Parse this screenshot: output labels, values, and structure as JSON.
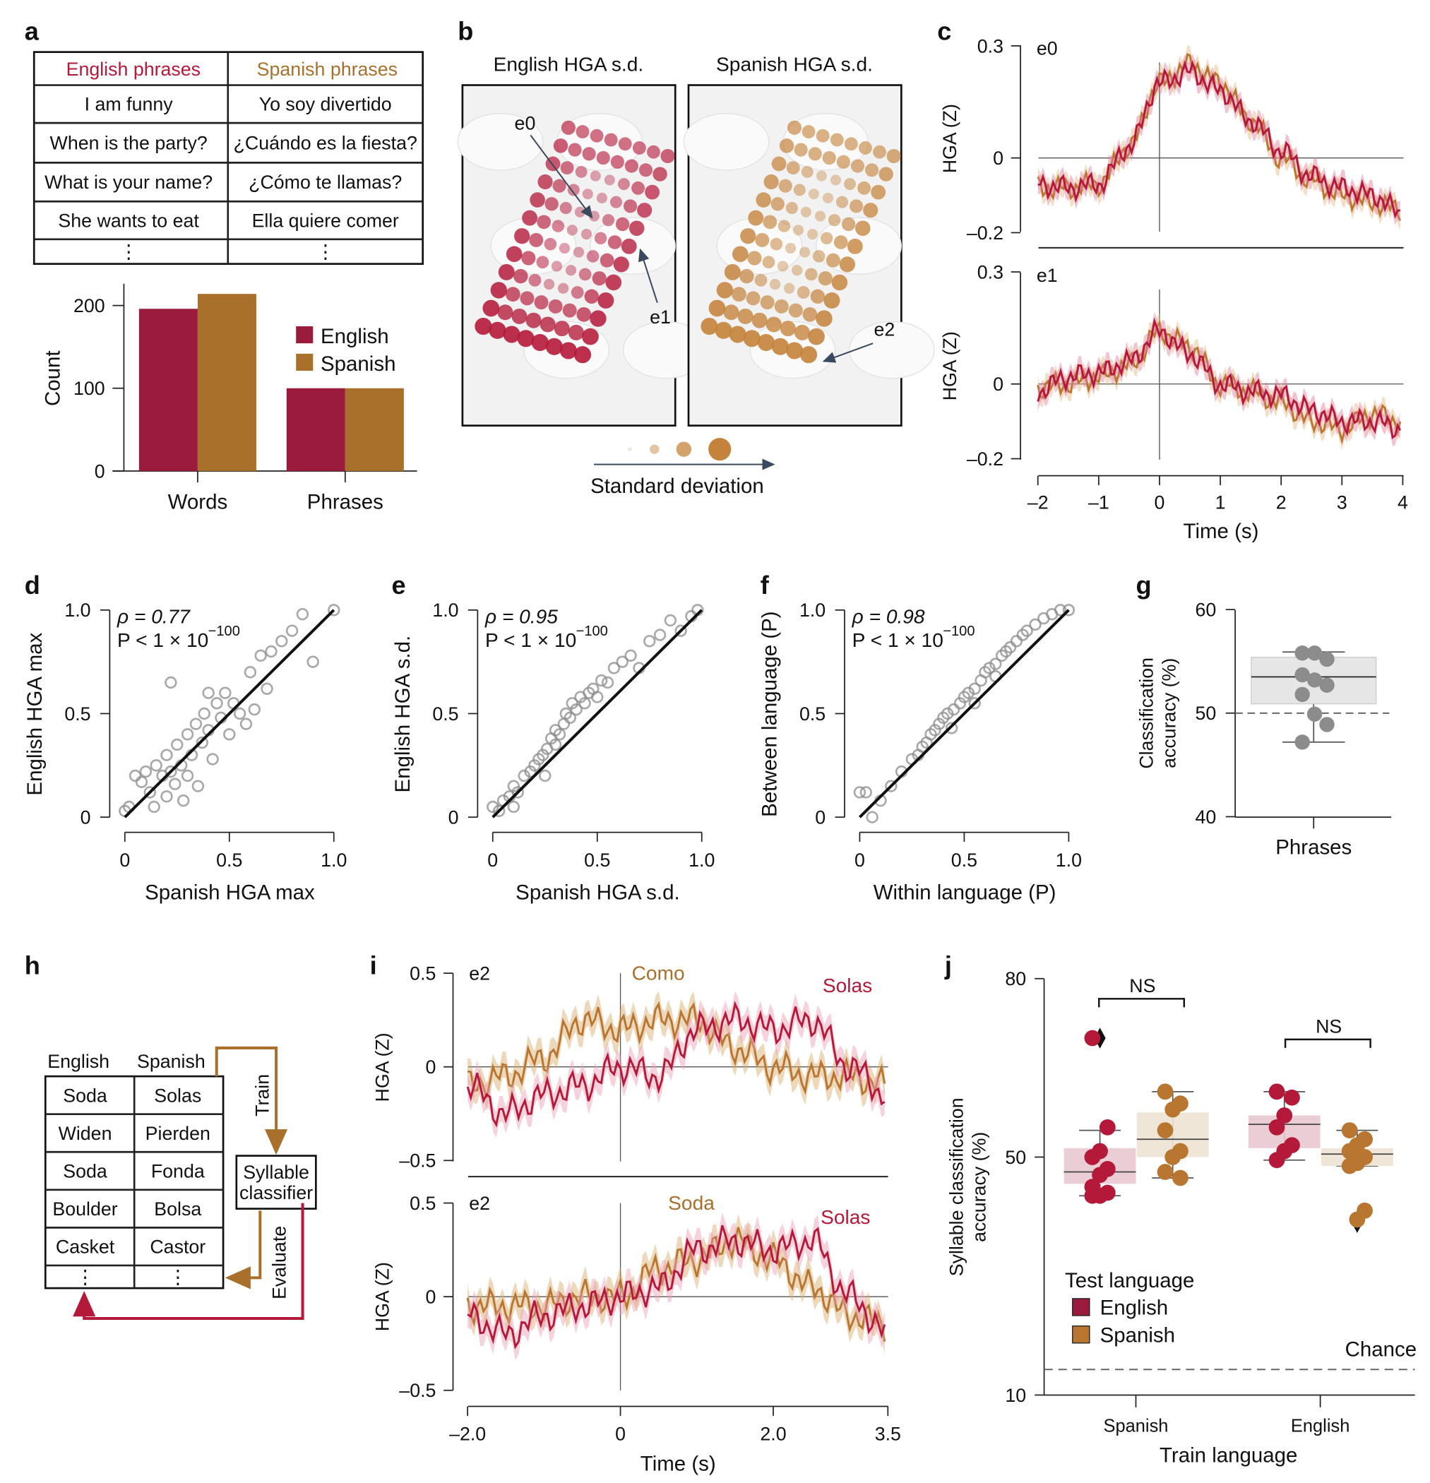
{
  "colors": {
    "english": "#9b1b3c",
    "english_line": "#b5193a",
    "spanish": "#a8702b",
    "spanish_line": "#b87630",
    "english_fill": "#e9c8d0",
    "spanish_fill": "#ede3d3",
    "points": "#8c8c8c",
    "arrow": "#3a4a5e"
  },
  "panel_labels": [
    "a",
    "b",
    "c",
    "d",
    "e",
    "f",
    "g",
    "h",
    "i",
    "j"
  ],
  "chart_data": [
    {
      "type": "table",
      "panel": "a",
      "headers": [
        "English phrases",
        "Spanish phrases"
      ],
      "rows": [
        [
          "I am funny",
          "Yo soy divertido"
        ],
        [
          "When is the party?",
          "¿Cuándo es la fiesta?"
        ],
        [
          "What is your name?",
          "¿Cómo te llamas?"
        ],
        [
          "She wants to eat",
          "Ella quiere comer"
        ],
        [
          "⋮",
          "⋮"
        ]
      ]
    },
    {
      "type": "bar",
      "panel": "a",
      "categories": [
        "Words",
        "Phrases"
      ],
      "ylabel": "Count",
      "ylim": [
        0,
        220
      ],
      "yticks": [
        0,
        100,
        200
      ],
      "series": [
        {
          "name": "English",
          "values": [
            196,
            100
          ]
        },
        {
          "name": "Spanish",
          "values": [
            214,
            100
          ]
        }
      ],
      "legend": "right"
    },
    {
      "type": "scatter",
      "panel": "b",
      "titles": [
        "English HGA s.d.",
        "Spanish HGA s.d."
      ],
      "electrode_labels": [
        "e0",
        "e1",
        "e2"
      ],
      "size_legend_label": "Standard deviation"
    },
    {
      "type": "line",
      "panel": "c",
      "xlabel": "Time (s)",
      "ylabel": "HGA (Z)",
      "xlim": [
        -2,
        4
      ],
      "ylim": [
        -0.2,
        0.3
      ],
      "xticks": [
        -2,
        -1,
        0,
        1,
        2,
        3,
        4
      ],
      "xtick_labels": [
        "–2",
        "–1",
        "0",
        "1",
        "2",
        "3",
        "4"
      ],
      "yticks": [
        -0.2,
        0,
        0.3
      ],
      "ytick_labels": [
        "–0.2",
        "0",
        "0.3"
      ],
      "x": [
        -2,
        -1.5,
        -1,
        -0.5,
        0,
        0.5,
        1,
        1.5,
        2,
        2.5,
        3,
        3.5,
        4
      ],
      "subplots": [
        {
          "label": "e0",
          "series": [
            {
              "name": "English",
              "values": [
                -0.07,
                -0.08,
                -0.07,
                0.03,
                0.2,
                0.23,
                0.18,
                0.1,
                0.02,
                -0.05,
                -0.08,
                -0.1,
                -0.15
              ]
            },
            {
              "name": "Spanish",
              "values": [
                -0.08,
                -0.08,
                -0.07,
                0.03,
                0.2,
                0.25,
                0.2,
                0.1,
                0.0,
                -0.06,
                -0.1,
                -0.12,
                -0.14
              ]
            }
          ]
        },
        {
          "label": "e1",
          "series": [
            {
              "name": "English",
              "values": [
                -0.02,
                0.02,
                0.03,
                0.06,
                0.14,
                0.08,
                0.0,
                -0.02,
                -0.03,
                -0.07,
                -0.1,
                -0.1,
                -0.12
              ]
            },
            {
              "name": "Spanish",
              "values": [
                -0.01,
                0.0,
                0.02,
                0.05,
                0.14,
                0.1,
                0.0,
                -0.02,
                -0.05,
                -0.1,
                -0.12,
                -0.08,
                -0.1
              ]
            }
          ]
        }
      ]
    },
    {
      "type": "scatter",
      "panel": "d",
      "xlabel": "Spanish HGA max",
      "ylabel": "English HGA max",
      "stat_rho": "ρ = 0.77",
      "stat_p": "P < 1 × 10",
      "stat_exp": "−100",
      "xlim": [
        0,
        1
      ],
      "ylim": [
        0,
        1
      ],
      "ticks": [
        "0",
        "0.5",
        "1.0"
      ],
      "fit": [
        [
          0,
          0
        ],
        [
          1,
          1
        ]
      ],
      "points": [
        [
          0,
          0.03
        ],
        [
          0.02,
          0.05
        ],
        [
          0.05,
          0.2
        ],
        [
          0.08,
          0.17
        ],
        [
          0.1,
          0.22
        ],
        [
          0.12,
          0.12
        ],
        [
          0.14,
          0.05
        ],
        [
          0.15,
          0.25
        ],
        [
          0.18,
          0.2
        ],
        [
          0.2,
          0.1
        ],
        [
          0.2,
          0.3
        ],
        [
          0.22,
          0.22
        ],
        [
          0.24,
          0.16
        ],
        [
          0.25,
          0.35
        ],
        [
          0.27,
          0.25
        ],
        [
          0.28,
          0.08
        ],
        [
          0.3,
          0.4
        ],
        [
          0.3,
          0.2
        ],
        [
          0.32,
          0.3
        ],
        [
          0.34,
          0.45
        ],
        [
          0.35,
          0.15
        ],
        [
          0.37,
          0.36
        ],
        [
          0.38,
          0.5
        ],
        [
          0.4,
          0.42
        ],
        [
          0.42,
          0.28
        ],
        [
          0.44,
          0.55
        ],
        [
          0.46,
          0.48
        ],
        [
          0.48,
          0.6
        ],
        [
          0.5,
          0.4
        ],
        [
          0.52,
          0.55
        ],
        [
          0.55,
          0.5
        ],
        [
          0.58,
          0.45
        ],
        [
          0.6,
          0.7
        ],
        [
          0.62,
          0.52
        ],
        [
          0.65,
          0.78
        ],
        [
          0.68,
          0.62
        ],
        [
          0.7,
          0.8
        ],
        [
          0.75,
          0.85
        ],
        [
          0.8,
          0.9
        ],
        [
          0.85,
          0.98
        ],
        [
          0.9,
          0.75
        ],
        [
          0.22,
          0.65
        ],
        [
          0.4,
          0.6
        ],
        [
          1.0,
          1.0
        ]
      ]
    },
    {
      "type": "scatter",
      "panel": "e",
      "xlabel": "Spanish HGA s.d.",
      "ylabel": "English HGA s.d.",
      "stat_rho": "ρ = 0.95",
      "stat_p": "P < 1 × 10",
      "stat_exp": "−100",
      "xlim": [
        0,
        1
      ],
      "ylim": [
        0,
        1
      ],
      "ticks": [
        "0",
        "0.5",
        "1.0"
      ],
      "fit": [
        [
          0,
          0
        ],
        [
          1,
          1
        ]
      ],
      "points": [
        [
          0,
          0.05
        ],
        [
          0.03,
          0.03
        ],
        [
          0.05,
          0.08
        ],
        [
          0.08,
          0.1
        ],
        [
          0.1,
          0.15
        ],
        [
          0.12,
          0.12
        ],
        [
          0.15,
          0.2
        ],
        [
          0.18,
          0.22
        ],
        [
          0.2,
          0.25
        ],
        [
          0.22,
          0.28
        ],
        [
          0.24,
          0.3
        ],
        [
          0.26,
          0.33
        ],
        [
          0.28,
          0.38
        ],
        [
          0.3,
          0.35
        ],
        [
          0.3,
          0.42
        ],
        [
          0.32,
          0.4
        ],
        [
          0.34,
          0.45
        ],
        [
          0.35,
          0.5
        ],
        [
          0.37,
          0.48
        ],
        [
          0.38,
          0.55
        ],
        [
          0.4,
          0.52
        ],
        [
          0.42,
          0.58
        ],
        [
          0.44,
          0.55
        ],
        [
          0.46,
          0.6
        ],
        [
          0.48,
          0.62
        ],
        [
          0.5,
          0.58
        ],
        [
          0.52,
          0.66
        ],
        [
          0.55,
          0.65
        ],
        [
          0.58,
          0.72
        ],
        [
          0.62,
          0.75
        ],
        [
          0.66,
          0.78
        ],
        [
          0.7,
          0.72
        ],
        [
          0.75,
          0.85
        ],
        [
          0.8,
          0.88
        ],
        [
          0.85,
          0.95
        ],
        [
          0.9,
          0.9
        ],
        [
          0.95,
          0.97
        ],
        [
          0.98,
          1.0
        ],
        [
          0.25,
          0.2
        ],
        [
          0.1,
          0.05
        ]
      ]
    },
    {
      "type": "scatter",
      "panel": "f",
      "xlabel": "Within language (P)",
      "ylabel": "Between language (P)",
      "stat_rho": "ρ = 0.98",
      "stat_p": "P < 1 × 10",
      "stat_exp": "−100",
      "xlim": [
        0,
        1
      ],
      "ylim": [
        0,
        1
      ],
      "ticks": [
        "0",
        "0.5",
        "1.0"
      ],
      "fit": [
        [
          0,
          0
        ],
        [
          1,
          1
        ]
      ],
      "points": [
        [
          0,
          0.12
        ],
        [
          0.03,
          0.12
        ],
        [
          0.06,
          0.0
        ],
        [
          0.1,
          0.08
        ],
        [
          0.15,
          0.15
        ],
        [
          0.2,
          0.22
        ],
        [
          0.25,
          0.28
        ],
        [
          0.28,
          0.3
        ],
        [
          0.3,
          0.34
        ],
        [
          0.32,
          0.36
        ],
        [
          0.34,
          0.4
        ],
        [
          0.36,
          0.42
        ],
        [
          0.38,
          0.45
        ],
        [
          0.4,
          0.48
        ],
        [
          0.42,
          0.5
        ],
        [
          0.45,
          0.52
        ],
        [
          0.48,
          0.55
        ],
        [
          0.5,
          0.58
        ],
        [
          0.52,
          0.6
        ],
        [
          0.55,
          0.62
        ],
        [
          0.58,
          0.66
        ],
        [
          0.6,
          0.7
        ],
        [
          0.62,
          0.72
        ],
        [
          0.65,
          0.74
        ],
        [
          0.68,
          0.78
        ],
        [
          0.7,
          0.8
        ],
        [
          0.72,
          0.82
        ],
        [
          0.75,
          0.85
        ],
        [
          0.78,
          0.88
        ],
        [
          0.8,
          0.9
        ],
        [
          0.84,
          0.93
        ],
        [
          0.88,
          0.96
        ],
        [
          0.92,
          0.98
        ],
        [
          0.96,
          1.0
        ],
        [
          1.0,
          1.0
        ],
        [
          0.44,
          0.43
        ],
        [
          0.55,
          0.55
        ],
        [
          0.65,
          0.68
        ]
      ]
    },
    {
      "type": "box",
      "panel": "g",
      "category": "Phrases",
      "ylabel": [
        "Classification",
        "accuracy (%)"
      ],
      "ylim": [
        40,
        60
      ],
      "yticks": [
        40,
        50,
        60
      ],
      "chance": 50,
      "box": {
        "q1": 50.9,
        "median": 53.5,
        "q3": 55.4,
        "whisker_low": 47.2,
        "whisker_high": 55.9
      },
      "points": [
        55.8,
        55.8,
        55.2,
        53.7,
        53.2,
        52.7,
        51.8,
        49.9,
        48.9,
        47.2
      ]
    },
    {
      "type": "table",
      "panel": "h",
      "headers": [
        "English",
        "Spanish"
      ],
      "rows": [
        [
          "Soda",
          "Solas"
        ],
        [
          "Widen",
          "Pierden"
        ],
        [
          "Soda",
          "Fonda"
        ],
        [
          "Boulder",
          "Bolsa"
        ],
        [
          "Casket",
          "Castor"
        ],
        [
          "⋮",
          "⋮"
        ]
      ],
      "classifier": [
        "Syllable",
        "classifier"
      ],
      "train_label": "Train",
      "evaluate_label": "Evaluate"
    },
    {
      "type": "line",
      "panel": "i",
      "xlabel": "Time (s)",
      "ylabel": "HGA (Z)",
      "xlim": [
        -2,
        3.5
      ],
      "ylim": [
        -0.5,
        0.5
      ],
      "xticks": [
        -2,
        0,
        2,
        3.5
      ],
      "xtick_labels": [
        "–2.0",
        "0",
        "2.0",
        "3.5"
      ],
      "yticks": [
        -0.5,
        0,
        0.5
      ],
      "ytick_labels": [
        "–0.5",
        "0",
        "0.5"
      ],
      "x": [
        -2,
        -1.5,
        -1,
        -0.5,
        0,
        0.5,
        1,
        1.5,
        2,
        2.5,
        3,
        3.5
      ],
      "subplots": [
        {
          "label": "e2",
          "series": [
            {
              "name": "Como",
              "lang": "Spanish",
              "values": [
                -0.1,
                -0.05,
                0.05,
                0.25,
                0.2,
                0.25,
                0.25,
                0.1,
                0.0,
                -0.05,
                -0.05,
                -0.1
              ]
            },
            {
              "name": "Solas",
              "lang": "English",
              "values": [
                -0.1,
                -0.25,
                -0.15,
                -0.1,
                0.0,
                -0.05,
                0.2,
                0.25,
                0.2,
                0.25,
                0.0,
                -0.15
              ]
            }
          ]
        },
        {
          "label": "e2",
          "series": [
            {
              "name": "Soda",
              "lang": "Spanish",
              "values": [
                -0.05,
                -0.05,
                -0.05,
                0.0,
                0.0,
                0.15,
                0.2,
                0.3,
                0.2,
                0.05,
                -0.1,
                -0.15
              ]
            },
            {
              "name": "Solas",
              "lang": "English",
              "values": [
                -0.1,
                -0.2,
                -0.1,
                -0.05,
                0.0,
                0.05,
                0.25,
                0.3,
                0.25,
                0.3,
                0.0,
                -0.2
              ]
            }
          ]
        }
      ]
    },
    {
      "type": "box",
      "panel": "j",
      "xlabel": "Train language",
      "ylabel": [
        "Syllable classification",
        "accuracy (%)"
      ],
      "ylim": [
        10,
        80
      ],
      "yticks": [
        10,
        50,
        80
      ],
      "chance": 14.3,
      "chance_label": "Chance",
      "legend_title": "Test language",
      "legend": [
        "English",
        "Spanish"
      ],
      "significance": [
        "NS",
        "NS"
      ],
      "groups": [
        {
          "train": "Spanish",
          "boxes": [
            {
              "test": "English",
              "q1": 45.5,
              "median": 47.5,
              "q3": 51.5,
              "whisker_low": 43.5,
              "whisker_high": 54.5,
              "outliers": [
                70
              ],
              "points": [
                70,
                55,
                51,
                50,
                48,
                47,
                45,
                44,
                43.5,
                43.5
              ]
            },
            {
              "test": "Spanish",
              "q1": 50,
              "median": 53,
              "q3": 57.5,
              "whisker_low": 46.5,
              "whisker_high": 61,
              "outliers": [],
              "points": [
                61,
                59,
                58,
                54.5,
                51,
                50,
                47.5,
                46.5
              ]
            }
          ]
        },
        {
          "train": "English",
          "boxes": [
            {
              "test": "English",
              "q1": 51.5,
              "median": 55.5,
              "q3": 57,
              "whisker_low": 49.5,
              "whisker_high": 61,
              "outliers": [],
              "points": [
                61,
                60,
                57,
                55,
                52,
                51,
                49.5
              ]
            },
            {
              "test": "Spanish",
              "q1": 48.5,
              "median": 50.5,
              "q3": 51.5,
              "whisker_low": 48.5,
              "whisker_high": 54.5,
              "outliers": [
                39
              ],
              "points": [
                54.5,
                53,
                52,
                51,
                50,
                49,
                48.5,
                41,
                39.5
              ]
            }
          ]
        }
      ]
    }
  ]
}
